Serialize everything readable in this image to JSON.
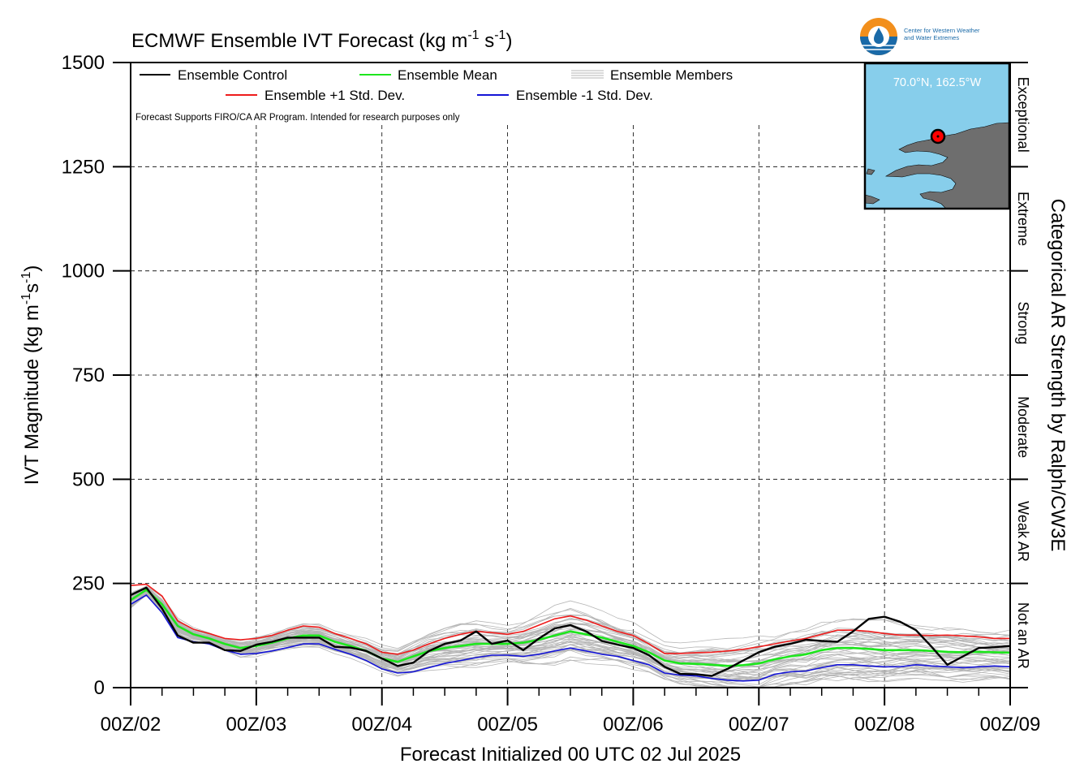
{
  "chart_data": {
    "type": "line",
    "title": "ECMWF Ensemble IVT Forecast (kg m",
    "title_unit_sup1": "-1",
    "title_unit_mid": " s",
    "title_unit_sup2": "-1",
    "title_unit_end": ")",
    "ylabel_main": "IVT Magnitude (kg m",
    "ylabel_sup1": "-1",
    "ylabel_mid": "s",
    "ylabel_sup2": "-1",
    "ylabel_end": ")",
    "xlabel": "Forecast Initialized 00 UTC 02 Jul 2025",
    "right_label": "Categorical AR Strength by Ralph/CW3E",
    "ylim": [
      0,
      1500
    ],
    "xlim": [
      0,
      168
    ],
    "yticks": [
      0,
      250,
      500,
      750,
      1000,
      1250,
      1500
    ],
    "xticks": [
      {
        "x": 0,
        "label": "00Z/02"
      },
      {
        "x": 24,
        "label": "00Z/03"
      },
      {
        "x": 48,
        "label": "00Z/04"
      },
      {
        "x": 72,
        "label": "00Z/05"
      },
      {
        "x": 96,
        "label": "00Z/06"
      },
      {
        "x": 120,
        "label": "00Z/07"
      },
      {
        "x": 144,
        "label": "00Z/08"
      },
      {
        "x": 168,
        "label": "00Z/09"
      }
    ],
    "grid": true,
    "categories": [
      {
        "label": "Not an AR",
        "from": 0,
        "to": 250
      },
      {
        "label": "Weak AR",
        "from": 250,
        "to": 500
      },
      {
        "label": "Moderate",
        "from": 500,
        "to": 750
      },
      {
        "label": "Strong",
        "from": 750,
        "to": 1000
      },
      {
        "label": "Extreme",
        "from": 1000,
        "to": 1250
      },
      {
        "label": "Exceptional",
        "from": 1250,
        "to": 1500
      }
    ],
    "legend": {
      "placement": "top-left",
      "control": "Ensemble Control",
      "mean": "Ensemble Mean",
      "members": "Ensemble Members",
      "plus_std": "Ensemble +1 Std. Dev.",
      "minus_std": "Ensemble -1 Std. Dev."
    },
    "note": "Forecast Supports FIRO/CA AR Program. Intended for research purposes only",
    "inset_location": "70.0°N, 162.5°W",
    "logo_text_line1": "Center for Western Weather",
    "logo_text_line2": "and Water Extremes",
    "series": [
      {
        "name": "Ensemble Control",
        "color": "#000000",
        "x": [
          0,
          3,
          6,
          9,
          12,
          15,
          18,
          21,
          24,
          27,
          30,
          33,
          36,
          39,
          42,
          45,
          48,
          51,
          54,
          57,
          60,
          63,
          66,
          69,
          72,
          75,
          78,
          81,
          84,
          87,
          90,
          93,
          96,
          99,
          102,
          105,
          108,
          111,
          114,
          117,
          120,
          123,
          126,
          129,
          132,
          135,
          138,
          141,
          144,
          147,
          150,
          153,
          156,
          159,
          162,
          165,
          168
        ],
        "values": [
          222,
          240,
          190,
          125,
          108,
          108,
          90,
          88,
          103,
          110,
          120,
          120,
          120,
          98,
          96,
          88,
          70,
          52,
          60,
          88,
          105,
          113,
          135,
          105,
          113,
          90,
          118,
          142,
          150,
          135,
          112,
          103,
          95,
          78,
          50,
          33,
          32,
          28,
          45,
          65,
          85,
          98,
          105,
          115,
          112,
          110,
          135,
          165,
          170,
          158,
          138,
          98,
          55,
          75,
          95,
          97,
          100
        ]
      },
      {
        "name": "Ensemble Mean",
        "color": "#1de61d",
        "x": [
          0,
          3,
          6,
          9,
          12,
          15,
          18,
          21,
          24,
          27,
          30,
          33,
          36,
          39,
          42,
          45,
          48,
          51,
          54,
          57,
          60,
          63,
          66,
          69,
          72,
          75,
          78,
          81,
          84,
          87,
          90,
          93,
          96,
          99,
          102,
          105,
          108,
          111,
          114,
          117,
          120,
          123,
          126,
          129,
          132,
          135,
          138,
          141,
          144,
          147,
          150,
          153,
          156,
          159,
          162,
          165,
          168
        ],
        "values": [
          210,
          235,
          200,
          148,
          128,
          118,
          105,
          95,
          100,
          108,
          118,
          125,
          125,
          110,
          100,
          88,
          70,
          62,
          75,
          88,
          95,
          100,
          105,
          105,
          105,
          108,
          115,
          125,
          135,
          128,
          120,
          110,
          100,
          85,
          65,
          58,
          57,
          55,
          52,
          54,
          58,
          68,
          75,
          80,
          90,
          95,
          95,
          93,
          90,
          90,
          90,
          88,
          86,
          85,
          86,
          85,
          84
        ]
      },
      {
        "name": "Ensemble +1 Std. Dev.",
        "color": "#ee1c1c",
        "x": [
          0,
          3,
          6,
          9,
          12,
          15,
          18,
          21,
          24,
          27,
          30,
          33,
          36,
          39,
          42,
          45,
          48,
          51,
          54,
          57,
          60,
          63,
          66,
          69,
          72,
          75,
          78,
          81,
          84,
          87,
          90,
          93,
          96,
          99,
          102,
          105,
          108,
          111,
          114,
          117,
          120,
          123,
          126,
          129,
          132,
          135,
          138,
          141,
          144,
          147,
          150,
          153,
          156,
          159,
          162,
          165,
          168
        ],
        "values": [
          245,
          248,
          220,
          160,
          140,
          130,
          118,
          115,
          118,
          125,
          138,
          148,
          145,
          130,
          118,
          105,
          85,
          80,
          90,
          105,
          118,
          128,
          135,
          132,
          128,
          135,
          150,
          165,
          172,
          162,
          148,
          135,
          125,
          105,
          82,
          82,
          84,
          85,
          88,
          92,
          98,
          105,
          112,
          118,
          128,
          138,
          138,
          135,
          130,
          126,
          126,
          125,
          126,
          124,
          122,
          118,
          118
        ]
      },
      {
        "name": "Ensemble -1 Std. Dev.",
        "color": "#1414d6",
        "x": [
          0,
          3,
          6,
          9,
          12,
          15,
          18,
          21,
          24,
          27,
          30,
          33,
          36,
          39,
          42,
          45,
          48,
          51,
          54,
          57,
          60,
          63,
          66,
          69,
          72,
          75,
          78,
          81,
          84,
          87,
          90,
          93,
          96,
          99,
          102,
          105,
          108,
          111,
          114,
          117,
          120,
          123,
          126,
          129,
          132,
          135,
          138,
          141,
          144,
          147,
          150,
          153,
          156,
          159,
          162,
          165,
          168
        ],
        "values": [
          200,
          222,
          180,
          120,
          110,
          105,
          90,
          80,
          82,
          88,
          96,
          105,
          105,
          92,
          80,
          65,
          45,
          35,
          38,
          48,
          58,
          65,
          72,
          78,
          78,
          75,
          80,
          88,
          95,
          88,
          80,
          75,
          65,
          55,
          35,
          30,
          28,
          22,
          18,
          16,
          18,
          32,
          38,
          40,
          48,
          55,
          55,
          52,
          50,
          50,
          55,
          52,
          50,
          48,
          50,
          52,
          50
        ]
      }
    ]
  }
}
